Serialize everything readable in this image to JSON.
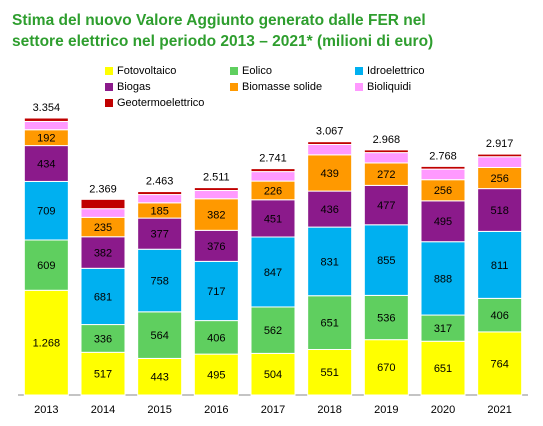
{
  "chart_data": {
    "type": "stacked-bar",
    "title": [
      "Stima del nuovo Valore Aggiunto generato dalle FER nel",
      "settore elettrico nel periodo 2013 – 2021* (milioni di euro)"
    ],
    "categories": [
      "2013",
      "2014",
      "2015",
      "2016",
      "2017",
      "2018",
      "2019",
      "2020",
      "2021"
    ],
    "series": [
      {
        "name": "Fotovoltaico",
        "color": "#ffff00",
        "values": [
          1268,
          517,
          443,
          495,
          504,
          551,
          670,
          651,
          764
        ],
        "value_labels": [
          "1.268",
          "517",
          "443",
          "495",
          "504",
          "551",
          "670",
          "651",
          "764"
        ]
      },
      {
        "name": "Eolico",
        "color": "#5fcf5f",
        "values": [
          609,
          336,
          564,
          406,
          562,
          651,
          536,
          317,
          406
        ]
      },
      {
        "name": "Idroelettrico",
        "color": "#00b0f0",
        "values": [
          709,
          681,
          758,
          717,
          847,
          831,
          855,
          888,
          811
        ]
      },
      {
        "name": "Biogas",
        "color": "#8b1a8b",
        "values": [
          434,
          382,
          377,
          376,
          451,
          436,
          477,
          495,
          518
        ]
      },
      {
        "name": "Biomasse solide",
        "color": "#ff9900",
        "values": [
          192,
          235,
          185,
          382,
          226,
          439,
          272,
          256,
          256
        ]
      },
      {
        "name": "Bioliquidi",
        "color": "#ff99ff",
        "values": [
          100,
          105,
          100,
          100,
          115,
          125,
          125,
          128,
          130
        ]
      },
      {
        "name": "Geotermoelettrico",
        "color": "#c00000",
        "values": [
          42,
          113,
          36,
          35,
          36,
          34,
          33,
          33,
          32
        ]
      }
    ],
    "totals": {
      "values": [
        3354,
        2369,
        2463,
        2511,
        2741,
        3067,
        2968,
        2768,
        2917
      ],
      "value_labels": [
        "3.354",
        "2.369",
        "2.463",
        "2.511",
        "2.741",
        "3.067",
        "2.968",
        "2.768",
        "2.917"
      ]
    },
    "show_segment_labels": [
      true,
      true,
      true,
      true,
      true,
      false,
      false
    ]
  }
}
